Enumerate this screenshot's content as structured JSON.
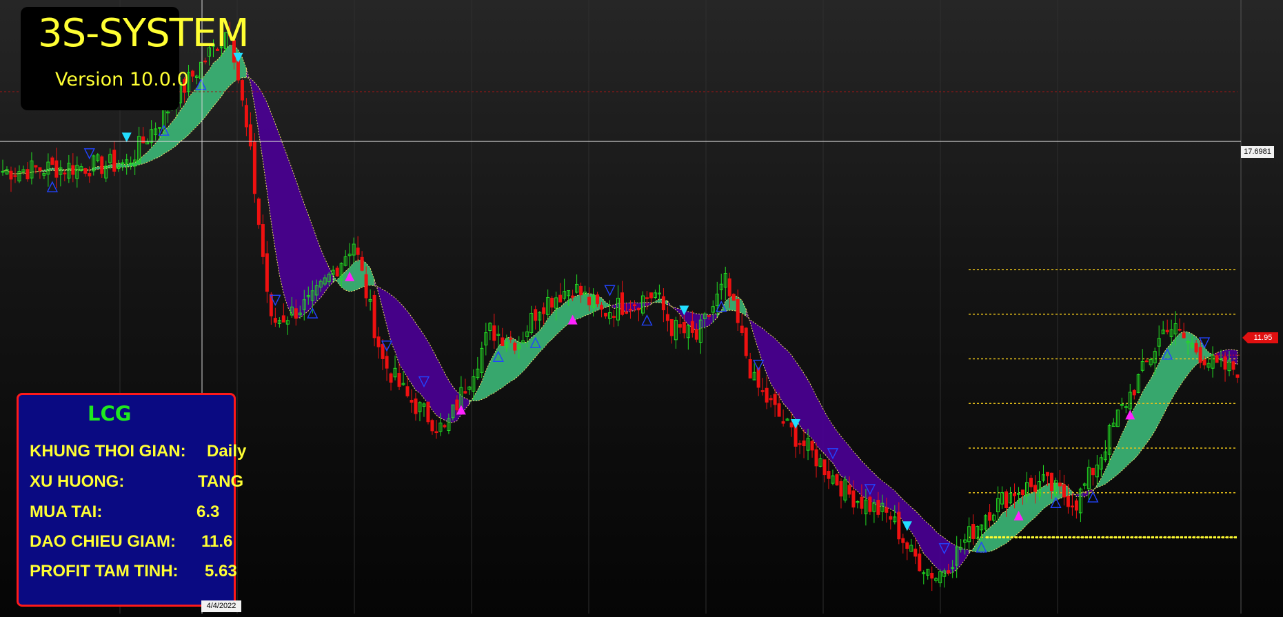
{
  "brand": {
    "title": "3S-SYSTEM",
    "version": "Version 10.0.0"
  },
  "info_panel": {
    "symbol": "LCG",
    "rows": [
      {
        "label": "KHUNG THOI GIAN:",
        "value": "Daily"
      },
      {
        "label": "XU HUONG:",
        "value": "TANG"
      },
      {
        "label": "MUA TAI:",
        "value": "6.3"
      },
      {
        "label": "DAO CHIEU GIAM:",
        "value": "11.6"
      },
      {
        "label": "PROFIT TAM TINH:",
        "value": "5.63"
      }
    ]
  },
  "crosshair": {
    "price_label": "17.6981",
    "date_label": "4/4/2022"
  },
  "last_price_label": "11.95",
  "colors": {
    "bull_candle": "#22dd22",
    "bear_candle": "#ee1111",
    "cloud_bull": "#3cb878",
    "cloud_bear": "#4b0096",
    "level_line": "#e8c21a",
    "buy_marker": "#ff22ff",
    "sell_marker": "#22ddff",
    "signal_outline": "#2244ff"
  },
  "chart_data": {
    "type": "candlestick",
    "y_range": [
      5.0,
      21.5
    ],
    "x_count": 300,
    "close_path": [
      [
        0,
        16.9
      ],
      [
        30,
        17.1
      ],
      [
        55,
        20.8
      ],
      [
        60,
        17.3
      ],
      [
        65,
        12.8
      ],
      [
        75,
        13.4
      ],
      [
        85,
        15.0
      ],
      [
        92,
        11.8
      ],
      [
        98,
        10.8
      ],
      [
        107,
        9.9
      ],
      [
        118,
        12.6
      ],
      [
        125,
        12.3
      ],
      [
        130,
        13.3
      ],
      [
        138,
        13.8
      ],
      [
        145,
        13.1
      ],
      [
        158,
        13.6
      ],
      [
        162,
        12.7
      ],
      [
        168,
        12.4
      ],
      [
        175,
        13.9
      ],
      [
        182,
        11.2
      ],
      [
        190,
        10.0
      ],
      [
        196,
        9.3
      ],
      [
        205,
        8.2
      ],
      [
        215,
        7.6
      ],
      [
        220,
        6.6
      ],
      [
        226,
        6.0
      ],
      [
        230,
        6.5
      ],
      [
        238,
        7.7
      ],
      [
        245,
        8.3
      ],
      [
        252,
        8.5
      ],
      [
        260,
        8.0
      ],
      [
        266,
        9.3
      ],
      [
        270,
        10.3
      ],
      [
        276,
        11.5
      ],
      [
        282,
        12.8
      ],
      [
        288,
        12.2
      ],
      [
        294,
        11.6
      ]
    ],
    "support_resistance_levels": [
      14.25,
      13.05,
      11.85,
      10.65,
      9.45,
      8.25,
      7.05
    ],
    "crosshair_price": 17.6981,
    "crosshair_date": "4/4/2022",
    "last_price": 11.95
  }
}
